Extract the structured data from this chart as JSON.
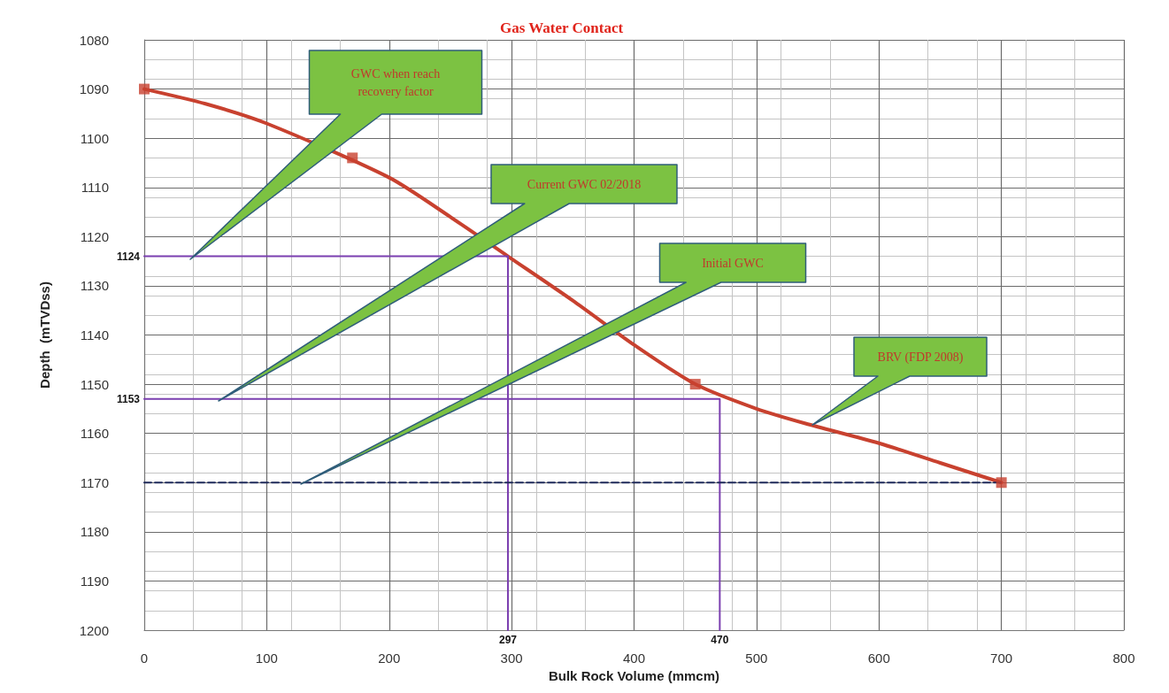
{
  "chart_data": {
    "type": "line",
    "title": "Gas Water Contact",
    "xlabel": "Bulk Rock Volume (mmcm)",
    "ylabel": "Depth  (mTVDss)",
    "xlim": [
      0,
      800
    ],
    "xticks": [
      0,
      100,
      200,
      300,
      400,
      500,
      600,
      700,
      800
    ],
    "ylim": [
      1200,
      1080
    ],
    "yticks": [
      1080,
      1090,
      1100,
      1110,
      1120,
      1130,
      1140,
      1150,
      1160,
      1170,
      1180,
      1190,
      1200
    ],
    "grid": true,
    "series": [
      {
        "color": "#c8412f",
        "x": [
          0,
          50,
          100,
          200,
          250,
          297,
          350,
          400,
          450,
          500,
          540,
          600,
          650,
          700
        ],
        "values": [
          1090,
          1093,
          1097,
          1108,
          1116,
          1124,
          1133,
          1142,
          1150,
          1155,
          1158,
          1162,
          1166,
          1170
        ],
        "marker": "none",
        "line_style": "solid"
      },
      {
        "type": "scatter",
        "color": "#c8412f",
        "x": [
          0,
          170,
          450,
          700
        ],
        "values": [
          1090,
          1104,
          1150,
          1170
        ],
        "marker": "square"
      },
      {
        "color": "#7b3fb0",
        "x": [
          0,
          297,
          297
        ],
        "values": [
          1124,
          1124,
          1200
        ],
        "marker": "none",
        "line_style": "solid"
      },
      {
        "color": "#7b3fb0",
        "x": [
          0,
          470,
          470
        ],
        "values": [
          1153,
          1153,
          1200
        ],
        "marker": "none",
        "line_style": "solid"
      },
      {
        "color": "#1f2a5a",
        "x": [
          0,
          700
        ],
        "values": [
          1170,
          1170
        ],
        "marker": "none",
        "line_style": "dashed"
      }
    ],
    "annotations": [
      "GWC when reach recovery factor",
      "Current GWC 02/2018",
      "Initial GWC",
      "BRV (FDP 2008)",
      {
        "text": "1124",
        "x": 0,
        "y": 1124
      },
      {
        "text": "1153",
        "x": 0,
        "y": 1153
      },
      {
        "text": "297",
        "x": 297,
        "y": 1200
      },
      {
        "text": "470",
        "x": 470,
        "y": 1200
      }
    ]
  }
}
